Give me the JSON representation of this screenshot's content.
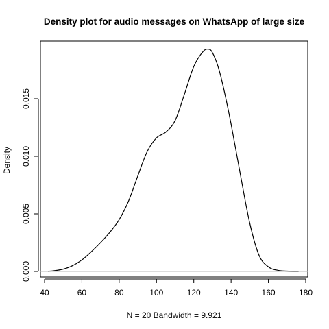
{
  "chart_data": {
    "type": "line",
    "title": "Density plot for audio messages on WhatsApp of large size",
    "xlabel": "N = 20   Bandwidth = 9.921",
    "ylabel": "Density",
    "xlim": [
      40,
      180
    ],
    "ylim": [
      0,
      0.0196
    ],
    "x_ticks": [
      40,
      60,
      80,
      100,
      120,
      140,
      160,
      180
    ],
    "y_ticks": [
      0.0,
      0.005,
      0.01,
      0.015
    ],
    "x_tick_labels": [
      "40",
      "60",
      "80",
      "100",
      "120",
      "140",
      "160",
      "180"
    ],
    "y_tick_labels": [
      "0.000",
      "0.005",
      "0.010",
      "0.015"
    ],
    "baseline": 0,
    "grid": false,
    "legend": "none",
    "series": [
      {
        "x": [
          42,
          45,
          50,
          55,
          60,
          65,
          70,
          75,
          80,
          85,
          90,
          95,
          100,
          105,
          110,
          115,
          120,
          125,
          128,
          130,
          133,
          136,
          140,
          145,
          150,
          155,
          160,
          165,
          170,
          176
        ],
        "y": [
          2e-05,
          6e-05,
          0.0002,
          0.0005,
          0.001,
          0.0017,
          0.0025,
          0.0034,
          0.0045,
          0.0061,
          0.0083,
          0.0104,
          0.0116,
          0.0121,
          0.0131,
          0.0154,
          0.0178,
          0.0191,
          0.0193,
          0.019,
          0.0178,
          0.0159,
          0.0128,
          0.0084,
          0.0042,
          0.0014,
          0.0004,
          0.0001,
          3e-05,
          1e-05
        ]
      }
    ]
  }
}
